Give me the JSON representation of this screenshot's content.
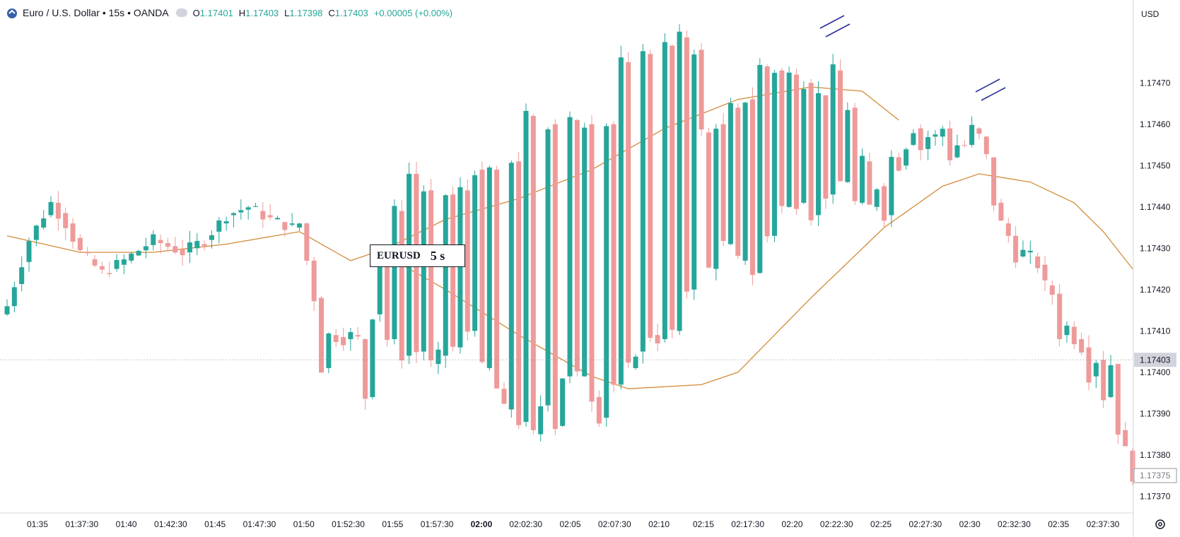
{
  "header": {
    "symbol": "Euro / U.S. Dollar • 15s • OANDA",
    "ohlc": [
      {
        "key": "O",
        "value": "1.17401"
      },
      {
        "key": "H",
        "value": "1.17403"
      },
      {
        "key": "L",
        "value": "1.17398"
      },
      {
        "key": "C",
        "value": "1.17403"
      }
    ],
    "change": "+0.00005 (+0.00%)"
  },
  "currency_button": "USD",
  "overlay_label": {
    "symbol": "EURUSD",
    "interval": "5 s"
  },
  "icons": {
    "logo": "tradingview-logo-icon",
    "visibility": "eye-icon",
    "settings": "gear-icon"
  },
  "colors": {
    "up": "#26a69a",
    "down": "#ef9a9a",
    "ma": "#d38b38",
    "price_line": "#131722",
    "annotation": "#2a2e99"
  },
  "chart_data": {
    "type": "candlestick",
    "y_range": [
      1.17368,
      1.17488
    ],
    "y_ticks": [
      1.1737,
      1.1738,
      1.1739,
      1.174,
      1.1741,
      1.1742,
      1.1743,
      1.1744,
      1.1745,
      1.1746,
      1.1747
    ],
    "y_tick_labels": [
      "1.17370",
      "1.17380",
      "1.17390",
      "1.17400",
      "1.17410",
      "1.17420",
      "1.17430",
      "1.17440",
      "1.17450",
      "1.17460",
      "1.17470"
    ],
    "last_price": "1.17403",
    "last_price_value": 1.17403,
    "crosshair_price": "1.17375",
    "crosshair_price_value": 1.17375,
    "x_tick_labels": [
      "01:35",
      "01:37:30",
      "01:40",
      "01:42:30",
      "01:45",
      "01:47:30",
      "01:50",
      "01:52:30",
      "01:55",
      "01:57:30",
      "02:00",
      "02:02:30",
      "02:05",
      "02:07:30",
      "02:10",
      "02:15",
      "02:17:30",
      "02:20",
      "02:22:30",
      "02:25",
      "02:27:30",
      "02:30",
      "02:32:30",
      "02:35",
      "02:37:30"
    ],
    "bold_x_tick": "02:00",
    "close_path": [
      [
        0,
        1.17416
      ],
      [
        3,
        1.17432
      ],
      [
        6,
        1.17441
      ],
      [
        8,
        1.17436
      ],
      [
        10,
        1.17429
      ],
      [
        13,
        1.17424
      ],
      [
        16,
        1.17427
      ],
      [
        20,
        1.17432
      ],
      [
        24,
        1.17429
      ],
      [
        27,
        1.17432
      ],
      [
        30,
        1.17438
      ],
      [
        33,
        1.1744
      ],
      [
        36,
        1.17437
      ],
      [
        39,
        1.17435
      ],
      [
        40,
        1.17436
      ],
      [
        42,
        1.17418
      ],
      [
        43,
        1.17401
      ],
      [
        46,
        1.17408
      ],
      [
        49,
        1.17394
      ],
      [
        51,
        1.17428
      ],
      [
        53,
        1.17439
      ],
      [
        55,
        1.17448
      ],
      [
        57,
        1.17444
      ],
      [
        60,
        1.17443
      ],
      [
        62,
        1.17444
      ],
      [
        64,
        1.17449
      ],
      [
        66,
        1.17449
      ],
      [
        69,
        1.17451
      ],
      [
        71,
        1.17462
      ],
      [
        74,
        1.1746
      ],
      [
        77,
        1.17461
      ],
      [
        79,
        1.1746
      ],
      [
        82,
        1.1746
      ],
      [
        84,
        1.17475
      ],
      [
        87,
        1.17477
      ],
      [
        90,
        1.17479
      ],
      [
        92,
        1.17481
      ],
      [
        94,
        1.17478
      ],
      [
        95,
        1.17458
      ],
      [
        97,
        1.1746
      ],
      [
        99,
        1.17464
      ],
      [
        101,
        1.17466
      ],
      [
        103,
        1.17474
      ],
      [
        105,
        1.17473
      ],
      [
        107,
        1.17472
      ],
      [
        109,
        1.1747
      ],
      [
        111,
        1.17467
      ],
      [
        113,
        1.17473
      ],
      [
        115,
        1.17464
      ],
      [
        117,
        1.17451
      ],
      [
        119,
        1.17445
      ],
      [
        120,
        1.17438
      ],
      [
        122,
        1.1745
      ],
      [
        124,
        1.17459
      ],
      [
        126,
        1.17457
      ],
      [
        129,
        1.17452
      ],
      [
        131,
        1.17455
      ],
      [
        133,
        1.17457
      ],
      [
        134,
        1.17452
      ],
      [
        137,
        1.17433
      ],
      [
        139,
        1.17429
      ],
      [
        142,
        1.17421
      ],
      [
        144,
        1.17409
      ],
      [
        146,
        1.17408
      ],
      [
        148,
        1.17399
      ],
      [
        150,
        1.17394
      ],
      [
        151,
        1.17402
      ],
      [
        44,
        1.17409
      ],
      [
        47,
        1.17409
      ],
      [
        48,
        1.17408
      ],
      [
        50,
        1.17414
      ],
      [
        52,
        1.17408
      ],
      [
        54,
        1.17404
      ],
      [
        56,
        1.17405
      ],
      [
        58,
        1.17402
      ],
      [
        59,
        1.17404
      ],
      [
        61,
        1.17406
      ],
      [
        63,
        1.1741
      ],
      [
        65,
        1.17401
      ],
      [
        67,
        1.17396
      ],
      [
        68,
        1.17391
      ],
      [
        70,
        1.17388
      ],
      [
        72,
        1.17385
      ],
      [
        73,
        1.17392
      ],
      [
        75,
        1.17387
      ],
      [
        76,
        1.17399
      ],
      [
        78,
        1.17399
      ],
      [
        80,
        1.17394
      ],
      [
        81,
        1.17389
      ],
      [
        83,
        1.17397
      ],
      [
        85,
        1.17401
      ],
      [
        86,
        1.17405
      ],
      [
        88,
        1.17409
      ],
      [
        89,
        1.17408
      ],
      [
        91,
        1.1741
      ],
      [
        93,
        1.1742
      ],
      [
        96,
        1.17425
      ],
      [
        98,
        1.17431
      ],
      [
        100,
        1.17427
      ],
      [
        102,
        1.17424
      ],
      [
        104,
        1.17433
      ],
      [
        106,
        1.1744
      ],
      [
        108,
        1.17441
      ],
      [
        110,
        1.17438
      ],
      [
        112,
        1.17443
      ],
      [
        114,
        1.17446
      ],
      [
        116,
        1.17441
      ],
      [
        118,
        1.1744
      ],
      [
        121,
        1.17452
      ],
      [
        123,
        1.17455
      ],
      [
        125,
        1.17454
      ],
      [
        127,
        1.17457
      ],
      [
        128,
        1.17459
      ],
      [
        130,
        1.17455
      ],
      [
        132,
        1.17459
      ],
      [
        135,
        1.17441
      ],
      [
        136,
        1.17436
      ],
      [
        138,
        1.17428
      ],
      [
        140,
        1.17428
      ],
      [
        141,
        1.17426
      ],
      [
        143,
        1.17419
      ],
      [
        145,
        1.17411
      ],
      [
        147,
        1.17406
      ],
      [
        149,
        1.17403
      ],
      [
        152,
        1.17386
      ],
      [
        153,
        1.17381
      ],
      [
        154,
        1.17375
      ]
    ],
    "ma_line": [
      [
        0,
        1.17433
      ],
      [
        10,
        1.17429
      ],
      [
        20,
        1.17429
      ],
      [
        30,
        1.17431
      ],
      [
        40,
        1.17434
      ],
      [
        47,
        1.17427
      ],
      [
        52,
        1.1743
      ],
      [
        60,
        1.17437
      ],
      [
        70,
        1.17442
      ],
      [
        80,
        1.17449
      ],
      [
        90,
        1.17459
      ],
      [
        100,
        1.17466
      ],
      [
        110,
        1.17469
      ],
      [
        117,
        1.17468
      ],
      [
        122,
        1.17461
      ]
    ],
    "ma_line_2": [
      [
        50,
        1.1743
      ],
      [
        60,
        1.1742
      ],
      [
        70,
        1.17409
      ],
      [
        80,
        1.17399
      ],
      [
        85,
        1.17396
      ],
      [
        95,
        1.17397
      ],
      [
        100,
        1.174
      ],
      [
        110,
        1.17418
      ],
      [
        120,
        1.17435
      ],
      [
        128,
        1.17445
      ],
      [
        133,
        1.17448
      ],
      [
        140,
        1.17446
      ],
      [
        146,
        1.17441
      ],
      [
        150,
        1.17434
      ],
      [
        154,
        1.17425
      ]
    ]
  }
}
